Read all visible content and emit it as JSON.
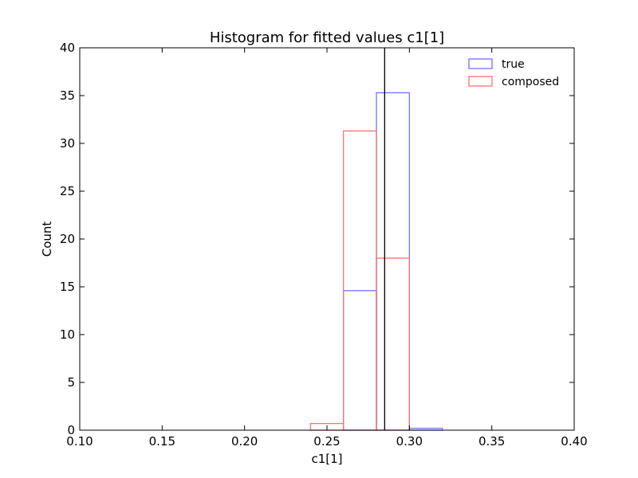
{
  "chart_data": {
    "type": "histogram",
    "title": "Histogram for fitted values c1[1]",
    "xlabel": "c1[1]",
    "ylabel": "Count",
    "xlim": [
      0.1,
      0.4
    ],
    "ylim": [
      0,
      40
    ],
    "xticks": [
      "0.10",
      "0.15",
      "0.20",
      "0.25",
      "0.30",
      "0.35",
      "0.40"
    ],
    "yticks": [
      "0",
      "5",
      "10",
      "15",
      "20",
      "25",
      "30",
      "35",
      "40"
    ],
    "bin_edges": [
      0.1,
      0.12,
      0.14,
      0.16,
      0.18,
      0.2,
      0.22,
      0.24,
      0.26,
      0.28,
      0.3,
      0.32,
      0.34,
      0.36,
      0.38,
      0.4
    ],
    "series": [
      {
        "name": "true",
        "color": "#7070ff",
        "values": [
          0,
          0,
          0,
          0,
          0,
          0,
          0,
          0,
          14.6,
          35.3,
          0.2,
          0,
          0,
          0,
          0
        ]
      },
      {
        "name": "composed",
        "color": "#ff7070",
        "values": [
          0,
          0,
          0,
          0,
          0,
          0,
          0,
          0.7,
          31.3,
          18.0,
          0,
          0,
          0,
          0,
          0
        ]
      }
    ],
    "reference_line_x": 0.285,
    "reference_line_color": "#000000",
    "grid": false,
    "legend_position": "top-right"
  }
}
